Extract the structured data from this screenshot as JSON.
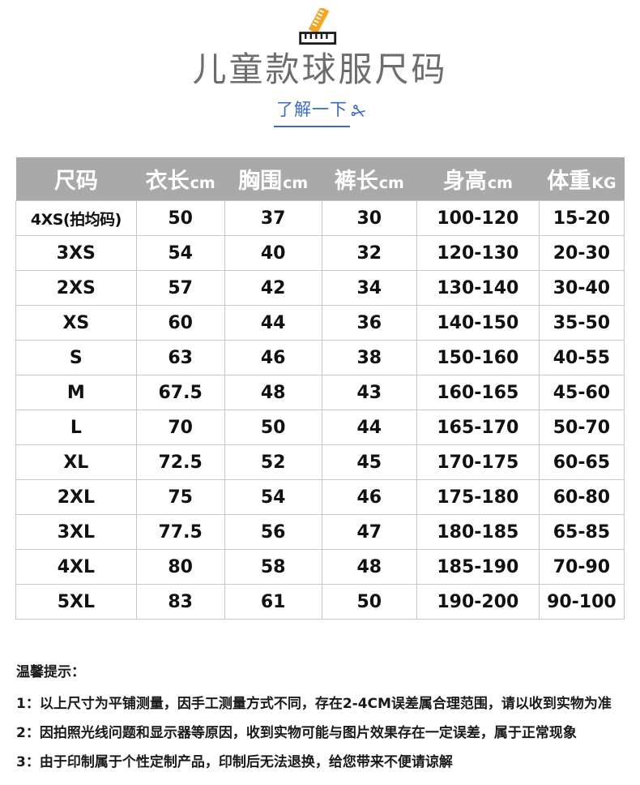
{
  "header": {
    "title": "儿童款球服尺码",
    "link_label": "了解一下",
    "icons": [
      "ruler-icon",
      "scissors-icon"
    ]
  },
  "colors": {
    "table_header_bg": "#a9a9a9",
    "table_header_text": "#ffffff",
    "cell_border": "#c9c9c9",
    "body_text": "#111111",
    "title_gray": "#6d6d6d",
    "link_blue": "#3a6bc7",
    "ruler_yellow": "#f5a623",
    "ruler_black": "#1a1a1a"
  },
  "table": {
    "headers": [
      {
        "label": "尺码",
        "unit": ""
      },
      {
        "label": "衣长",
        "unit": "cm"
      },
      {
        "label": "胸围",
        "unit": "cm"
      },
      {
        "label": "裤长",
        "unit": "cm"
      },
      {
        "label": "身高",
        "unit": "cm"
      },
      {
        "label": "体重",
        "unit": "KG"
      }
    ],
    "rows": [
      [
        "4XS(拍均码)",
        "50",
        "37",
        "30",
        "100-120",
        "15-20"
      ],
      [
        "3XS",
        "54",
        "40",
        "32",
        "120-130",
        "20-30"
      ],
      [
        "2XS",
        "57",
        "42",
        "34",
        "130-140",
        "30-40"
      ],
      [
        "XS",
        "60",
        "44",
        "36",
        "140-150",
        "35-50"
      ],
      [
        "S",
        "63",
        "46",
        "38",
        "150-160",
        "40-55"
      ],
      [
        "M",
        "67.5",
        "48",
        "43",
        "160-165",
        "45-60"
      ],
      [
        "L",
        "70",
        "50",
        "44",
        "165-170",
        "50-70"
      ],
      [
        "XL",
        "72.5",
        "52",
        "45",
        "170-175",
        "60-65"
      ],
      [
        "2XL",
        "75",
        "54",
        "46",
        "175-180",
        "60-80"
      ],
      [
        "3XL",
        "77.5",
        "56",
        "47",
        "180-185",
        "65-85"
      ],
      [
        "4XL",
        "80",
        "58",
        "48",
        "185-190",
        "70-90"
      ],
      [
        "5XL",
        "83",
        "61",
        "50",
        "190-200",
        "90-100"
      ]
    ]
  },
  "notes": {
    "title": "温馨提示：",
    "items": [
      "1：以上尺寸为平铺测量，因手工测量方式不同，存在2-4CM误差属合理范围，请以收到实物为准",
      "2：因拍照光线问题和显示器等原因，收到实物可能与图片效果存在一定误差，属于正常现象",
      "3：由于印制属于个性定制产品，印制后无法退换，给您带来不便请谅解"
    ]
  }
}
